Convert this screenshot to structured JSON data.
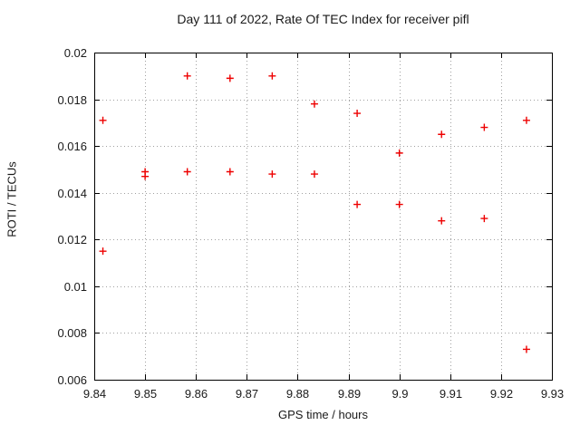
{
  "chart_data": {
    "type": "scatter",
    "title": "Day 111 of 2022, Rate Of TEC Index for receiver pifl",
    "xlabel": "GPS time / hours",
    "ylabel": "ROTI / TECUs",
    "xlim": [
      9.84,
      9.93
    ],
    "ylim": [
      0.006,
      0.02
    ],
    "grid": true,
    "legend": null,
    "x_ticks": [
      {
        "v": 9.84,
        "label": "9.84"
      },
      {
        "v": 9.85,
        "label": "9.85"
      },
      {
        "v": 9.86,
        "label": "9.86"
      },
      {
        "v": 9.87,
        "label": "9.87"
      },
      {
        "v": 9.88,
        "label": "9.88"
      },
      {
        "v": 9.89,
        "label": "9.89"
      },
      {
        "v": 9.9,
        "label": "9.9"
      },
      {
        "v": 9.91,
        "label": "9.91"
      },
      {
        "v": 9.92,
        "label": "9.92"
      },
      {
        "v": 9.93,
        "label": "9.93"
      }
    ],
    "y_ticks": [
      {
        "v": 0.006,
        "label": "0.006"
      },
      {
        "v": 0.008,
        "label": "0.008"
      },
      {
        "v": 0.01,
        "label": "0.01"
      },
      {
        "v": 0.012,
        "label": "0.012"
      },
      {
        "v": 0.014,
        "label": "0.014"
      },
      {
        "v": 0.016,
        "label": "0.016"
      },
      {
        "v": 0.018,
        "label": "0.018"
      },
      {
        "v": 0.02,
        "label": "0.02"
      }
    ],
    "marker": {
      "shape": "plus",
      "color": "#ee0000"
    },
    "series": [
      {
        "name": "ROTI",
        "points": [
          [
            9.8417,
            0.0171
          ],
          [
            9.8417,
            0.0115
          ],
          [
            9.85,
            0.0149
          ],
          [
            9.85,
            0.0147
          ],
          [
            9.8583,
            0.019
          ],
          [
            9.8583,
            0.0149
          ],
          [
            9.8667,
            0.0189
          ],
          [
            9.8667,
            0.0149
          ],
          [
            9.875,
            0.019
          ],
          [
            9.875,
            0.0148
          ],
          [
            9.8833,
            0.0178
          ],
          [
            9.8833,
            0.0148
          ],
          [
            9.8917,
            0.0174
          ],
          [
            9.8917,
            0.0135
          ],
          [
            9.9,
            0.0157
          ],
          [
            9.9,
            0.0135
          ],
          [
            9.9083,
            0.0165
          ],
          [
            9.9083,
            0.0128
          ],
          [
            9.9167,
            0.0168
          ],
          [
            9.9167,
            0.0129
          ],
          [
            9.925,
            0.0171
          ],
          [
            9.925,
            0.0073
          ]
        ]
      }
    ],
    "colors": {
      "marker": "#ee0000",
      "grid": "#a0a0a0",
      "axis": "#000000",
      "text": "#1a1a1a",
      "background": "#ffffff"
    }
  }
}
